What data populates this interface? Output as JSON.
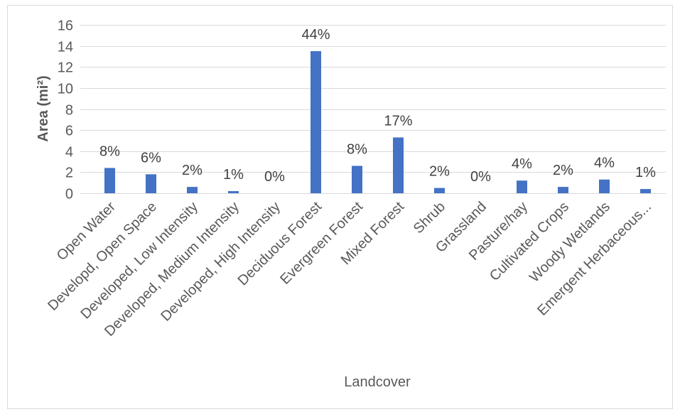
{
  "chart_data": {
    "type": "bar",
    "xlabel": "Landcover",
    "ylabel": "Area (mi²)",
    "ylim": [
      0,
      16
    ],
    "yticks": [
      0,
      2,
      4,
      6,
      8,
      10,
      12,
      14,
      16
    ],
    "grid": true,
    "categories": [
      "Open Water",
      "Developd, Open Space",
      "Developed, Low Intensity",
      "Developed, Medium Intensity",
      "Developed, High Intensity",
      "Deciduous Forest",
      "Evergreen Forest",
      "Mixed Forest",
      "Shrub",
      "Grassland",
      "Pasture/hay",
      "Cultivated Crops",
      "Woody Wetlands",
      "Emergent Herbaceous..."
    ],
    "values": [
      2.4,
      1.8,
      0.6,
      0.2,
      0.0,
      13.5,
      2.6,
      5.3,
      0.5,
      0.0,
      1.2,
      0.6,
      1.3,
      0.4
    ],
    "data_labels": [
      "8%",
      "6%",
      "2%",
      "1%",
      "0%",
      "44%",
      "8%",
      "17%",
      "2%",
      "0%",
      "4%",
      "2%",
      "4%",
      "1%"
    ],
    "colors": {
      "bar": "#4472C4",
      "gridline": "#D9D9D9",
      "border": "#D9D9D9"
    }
  }
}
